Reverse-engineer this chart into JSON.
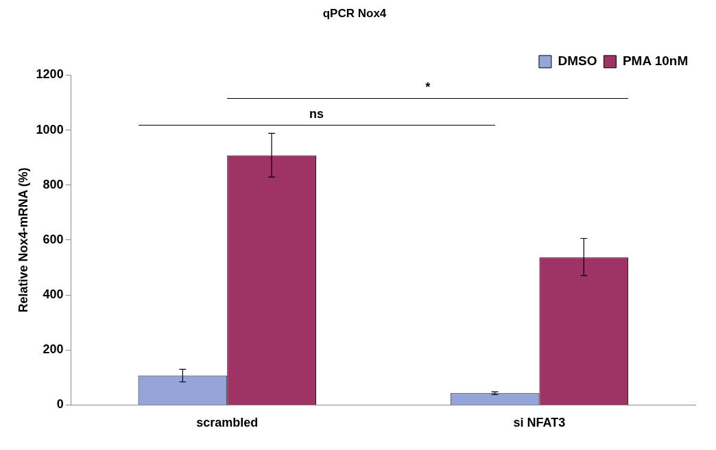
{
  "chart_data": {
    "type": "bar",
    "title": "qPCR Nox4",
    "ylabel": "Relative Nox4-mRNA (%)",
    "categories": [
      "scrambled",
      "si NFAT3"
    ],
    "series": [
      {
        "name": "DMSO",
        "color": "#95a5d9",
        "values": [
          107,
          43
        ],
        "errors": [
          23,
          5
        ]
      },
      {
        "name": "PMA 10nM",
        "color": "#9e3366",
        "values": [
          908,
          537
        ],
        "errors": [
          [
            829,
            988
          ],
          [
            471,
            606
          ]
        ]
      }
    ],
    "ylim": [
      0,
      1200
    ],
    "yticks": [
      0,
      200,
      400,
      600,
      800,
      1000,
      1200
    ],
    "grid": false,
    "legend": "top right",
    "annotations": [
      "ns",
      "*"
    ]
  }
}
